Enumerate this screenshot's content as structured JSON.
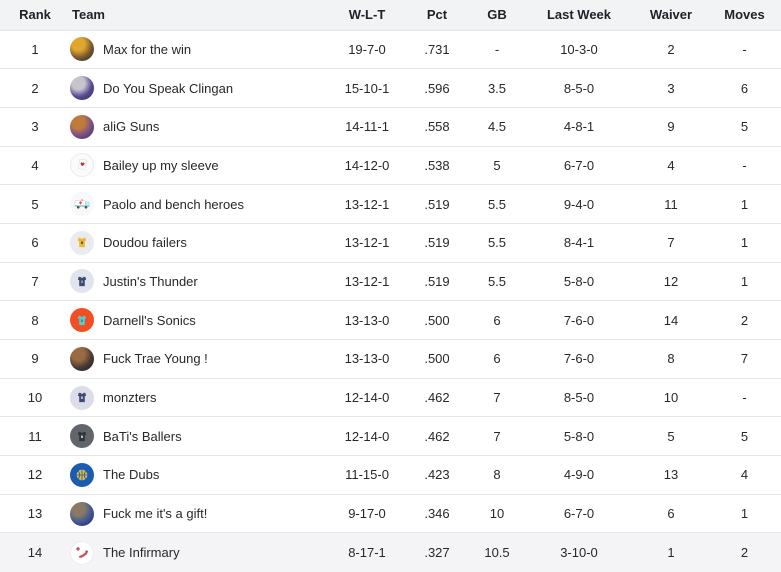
{
  "colors": {
    "header_bg": "#f2f3f5",
    "header_text": "#1d2228",
    "body_text": "#26282a",
    "row_border": "#e2e5e9",
    "row_bg": "#ffffff",
    "highlight_row_bg": "#f4f4f6"
  },
  "table": {
    "columns": [
      {
        "key": "rank",
        "label": "Rank"
      },
      {
        "key": "team",
        "label": "Team"
      },
      {
        "key": "wlt",
        "label": "W-L-T"
      },
      {
        "key": "pct",
        "label": "Pct"
      },
      {
        "key": "gb",
        "label": "GB"
      },
      {
        "key": "last_week",
        "label": "Last Week"
      },
      {
        "key": "waiver",
        "label": "Waiver"
      },
      {
        "key": "moves",
        "label": "Moves"
      }
    ],
    "rows": [
      {
        "rank": "1",
        "team": "Max for the win",
        "wlt": "19-7-0",
        "pct": ".731",
        "gb": "-",
        "last_week": "10-3-0",
        "waiver": "2",
        "moves": "-",
        "highlight": false,
        "avatar": {
          "name": "team-photo-avatar",
          "type": "photo",
          "colors": [
            "#e0a62f",
            "#7a5b2e",
            "#2a2026"
          ]
        }
      },
      {
        "rank": "2",
        "team": "Do You Speak Clingan",
        "wlt": "15-10-1",
        "pct": ".596",
        "gb": "3.5",
        "last_week": "8-5-0",
        "waiver": "3",
        "moves": "6",
        "highlight": false,
        "avatar": {
          "name": "team-photo-avatar",
          "type": "photo",
          "colors": [
            "#c8c4cc",
            "#5a4a96",
            "#2e2a34"
          ]
        }
      },
      {
        "rank": "3",
        "team": "aliG Suns",
        "wlt": "14-11-1",
        "pct": ".558",
        "gb": "4.5",
        "last_week": "4-8-1",
        "waiver": "9",
        "moves": "5",
        "highlight": false,
        "avatar": {
          "name": "team-photo-avatar",
          "type": "photo",
          "colors": [
            "#c07a3c",
            "#7a4e88",
            "#3c2a48"
          ]
        }
      },
      {
        "rank": "4",
        "team": "Bailey up my sleeve",
        "wlt": "14-12-0",
        "pct": ".538",
        "gb": "5",
        "last_week": "6-7-0",
        "waiver": "4",
        "moves": "-",
        "highlight": false,
        "avatar": {
          "name": "playing-card-icon",
          "type": "card",
          "bg": "#fbfbfc",
          "card": "#ffffff",
          "heart": "#bf2e38"
        }
      },
      {
        "rank": "5",
        "team": "Paolo and bench heroes",
        "wlt": "13-12-1",
        "pct": ".519",
        "gb": "5.5",
        "last_week": "9-4-0",
        "waiver": "11",
        "moves": "1",
        "highlight": false,
        "avatar": {
          "name": "ambulance-icon",
          "type": "ambulance",
          "bg": "#f7f8f9",
          "body": "#ffffff",
          "stripe": "#8fd0d2",
          "cross": "#e5534b",
          "wheel": "#4a5056"
        }
      },
      {
        "rank": "6",
        "team": "Doudou failers",
        "wlt": "13-12-1",
        "pct": ".519",
        "gb": "5.5",
        "last_week": "8-4-1",
        "waiver": "7",
        "moves": "1",
        "highlight": false,
        "avatar": {
          "name": "jersey-icon",
          "type": "jersey",
          "bg": "#e9ebee",
          "fg": "#f0b82a",
          "emblem": "#4a4438"
        }
      },
      {
        "rank": "7",
        "team": "Justin's Thunder",
        "wlt": "13-12-1",
        "pct": ".519",
        "gb": "5.5",
        "last_week": "5-8-0",
        "waiver": "12",
        "moves": "1",
        "highlight": false,
        "avatar": {
          "name": "jersey-icon",
          "type": "jersey",
          "bg": "#dfe4ed",
          "fg": "#3e4c6e",
          "emblem": "#8fa0c0"
        }
      },
      {
        "rank": "8",
        "team": "Darnell's Sonics",
        "wlt": "13-13-0",
        "pct": ".500",
        "gb": "6",
        "last_week": "7-6-0",
        "waiver": "14",
        "moves": "2",
        "highlight": false,
        "avatar": {
          "name": "jersey-icon",
          "type": "jersey",
          "bg": "#f04e23",
          "fg": "#5cc9cb",
          "emblem": "#2e8f96"
        }
      },
      {
        "rank": "9",
        "team": "Fuck Trae Young !",
        "wlt": "13-13-0",
        "pct": ".500",
        "gb": "6",
        "last_week": "7-6-0",
        "waiver": "8",
        "moves": "7",
        "highlight": false,
        "avatar": {
          "name": "team-photo-avatar",
          "type": "photo",
          "colors": [
            "#9a6a42",
            "#4a3a34",
            "#16181f"
          ]
        }
      },
      {
        "rank": "10",
        "team": "monzters",
        "wlt": "12-14-0",
        "pct": ".462",
        "gb": "7",
        "last_week": "8-5-0",
        "waiver": "10",
        "moves": "-",
        "highlight": false,
        "avatar": {
          "name": "jersey-icon",
          "type": "jersey",
          "bg": "#dcdde8",
          "fg": "#3f4a77",
          "emblem": "#c8ccdd"
        }
      },
      {
        "rank": "11",
        "team": "BaTi's Ballers",
        "wlt": "12-14-0",
        "pct": ".462",
        "gb": "7",
        "last_week": "5-8-0",
        "waiver": "5",
        "moves": "5",
        "highlight": false,
        "avatar": {
          "name": "jersey-icon",
          "type": "jersey",
          "bg": "#61666c",
          "fg": "#30353b",
          "emblem": "#d8d8d8"
        }
      },
      {
        "rank": "12",
        "team": "The Dubs",
        "wlt": "11-15-0",
        "pct": ".423",
        "gb": "8",
        "last_week": "4-9-0",
        "waiver": "13",
        "moves": "4",
        "highlight": false,
        "avatar": {
          "name": "basketball-icon",
          "type": "basketball",
          "bg": "#1b5cb1",
          "ball": "#ddba41"
        }
      },
      {
        "rank": "13",
        "team": "Fuck me it's a gift!",
        "wlt": "9-17-0",
        "pct": ".346",
        "gb": "10",
        "last_week": "6-7-0",
        "waiver": "6",
        "moves": "1",
        "highlight": false,
        "avatar": {
          "name": "team-photo-avatar",
          "type": "photo",
          "colors": [
            "#8a7a64",
            "#3d5698",
            "#222a3a"
          ]
        }
      },
      {
        "rank": "14",
        "team": "The Infirmary",
        "wlt": "8-17-1",
        "pct": ".327",
        "gb": "10.5",
        "last_week": "3-10-0",
        "waiver": "1",
        "moves": "2",
        "highlight": true,
        "avatar": {
          "name": "injured-player-icon",
          "type": "infirmary",
          "bg": "#ffffff",
          "cross": "#cc3340",
          "figure": "#c2454e"
        }
      }
    ]
  }
}
